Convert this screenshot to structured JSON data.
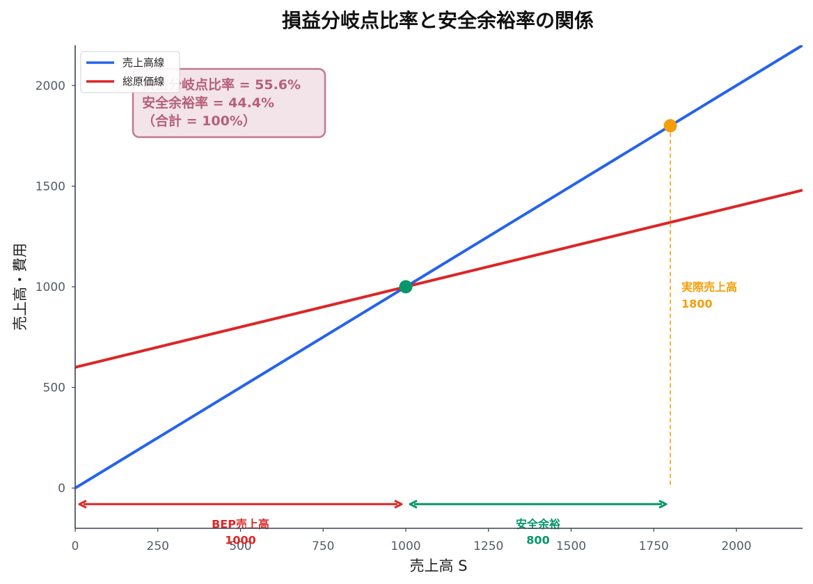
{
  "chart_data": {
    "type": "line",
    "title": "損益分岐点比率と安全余裕率の関係",
    "xlabel": "売上高 S",
    "ylabel": "売上高・費用",
    "xlim": [
      0,
      2200
    ],
    "ylim": [
      -200,
      2200
    ],
    "x_ticks": [
      "0",
      "250",
      "500",
      "750",
      "1000",
      "1250",
      "1500",
      "1750",
      "2000"
    ],
    "y_ticks": [
      "0",
      "500",
      "1000",
      "1500",
      "2000"
    ],
    "grid": false,
    "legend_position": "top-left",
    "series": [
      {
        "name": "売上高線",
        "color": "#2563eb",
        "x": [
          0,
          2200
        ],
        "y": [
          0,
          2200
        ]
      },
      {
        "name": "総原価線",
        "color": "#dc2626",
        "x": [
          0,
          2200
        ],
        "y": [
          600,
          1480
        ]
      }
    ],
    "points": [
      {
        "label": "breakeven",
        "x": 1000,
        "y": 1000,
        "color": "#059669"
      },
      {
        "label": "actual",
        "x": 1800,
        "y": 1800,
        "color": "#f59e0b"
      }
    ],
    "annotation_box": {
      "lines": [
        "損益分岐点比率 = 55.6%",
        "安全余裕率 = 44.4%",
        "（合計 = 100%）"
      ],
      "text_color": "#b5607a",
      "fill": "#f3e4ea",
      "border": "#c07890"
    },
    "actual_sales": {
      "label": "実際売上高",
      "value_text": "1800",
      "x": 1800,
      "color": "#f59e0b"
    },
    "ranges": [
      {
        "label": "BEP売上高",
        "value_text": "1000",
        "x_from": 0,
        "x_to": 1000,
        "y": -80,
        "color": "#dc2626"
      },
      {
        "label": "安全余裕",
        "value_text": "800",
        "x_from": 1000,
        "x_to": 1800,
        "y": -80,
        "color": "#059669"
      }
    ]
  }
}
